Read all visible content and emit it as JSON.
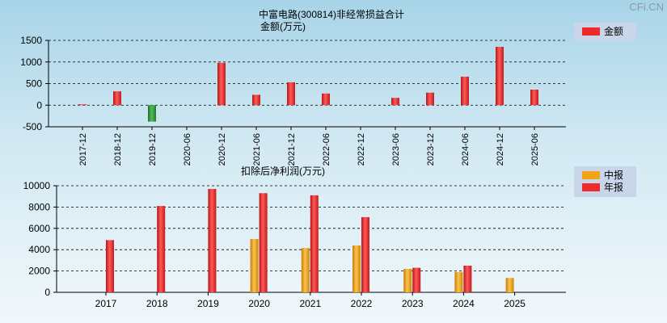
{
  "watermark": "CFi.CN",
  "colors": {
    "bar_red": "#ee2b2b",
    "bar_green": "#2f9a3a",
    "bar_orange": "#f2a417",
    "legend_bg": "#c9d6ea",
    "axis": "#000000",
    "grid": "#000000"
  },
  "chart_data": [
    {
      "type": "bar",
      "title": "中富电路(300814)非经常损益合计",
      "subtitle": "金额(万元)",
      "xlabel": "",
      "ylabel": "",
      "ylim": [
        -500,
        1500
      ],
      "yticks": [
        -500,
        0,
        500,
        1000,
        1500
      ],
      "grid": true,
      "legend": "top-right",
      "categories": [
        "2017-12",
        "2018-12",
        "2019-12",
        "2020-06",
        "2020-12",
        "2021-06",
        "2021-12",
        "2022-06",
        "2022-12",
        "2023-06",
        "2023-12",
        "2024-06",
        "2024-12",
        "2025-06"
      ],
      "series": [
        {
          "name": "金额",
          "color": "#ee2b2b",
          "negative_color": "#2f9a3a",
          "values": [
            20,
            320,
            -380,
            0,
            980,
            240,
            530,
            270,
            0,
            170,
            290,
            660,
            1350,
            360
          ]
        }
      ]
    },
    {
      "type": "bar",
      "title": "扣除后净利润(万元)",
      "xlabel": "",
      "ylabel": "",
      "ylim": [
        0,
        10000
      ],
      "yticks": [
        0,
        2000,
        4000,
        6000,
        8000,
        10000
      ],
      "grid": true,
      "legend": "top-right",
      "categories": [
        "2017",
        "2018",
        "2019",
        "2020",
        "2021",
        "2022",
        "2023",
        "2024",
        "2025"
      ],
      "series": [
        {
          "name": "中报",
          "color": "#f2a417",
          "values": [
            null,
            null,
            null,
            5000,
            4150,
            4400,
            2200,
            1900,
            1350
          ]
        },
        {
          "name": "年报",
          "color": "#ee2b2b",
          "values": [
            4900,
            8100,
            9700,
            9300,
            9100,
            7050,
            2300,
            2500,
            null
          ]
        }
      ]
    }
  ]
}
